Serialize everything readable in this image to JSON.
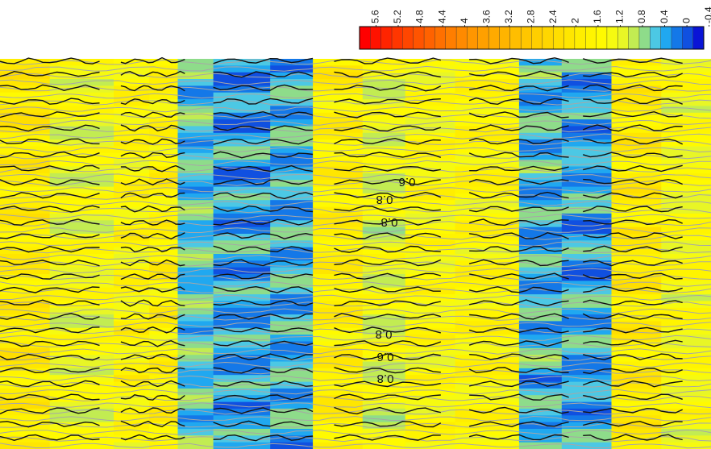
{
  "chart_data": {
    "type": "heatmap",
    "title": "",
    "xlabel": "",
    "ylabel": "",
    "colorbar": {
      "position": "top-right",
      "orientation": "horizontal",
      "tick_labels": [
        "5.6",
        "5.2",
        "4.8",
        "4.4",
        "4",
        "3.6",
        "3.2",
        "2.8",
        "2.4",
        "2",
        "1.6",
        "1.2",
        "0.8",
        "0.4",
        "0",
        "-0.4"
      ],
      "range": [
        -0.4,
        5.8
      ],
      "levels": [
        5.8,
        5.6,
        5.4,
        5.2,
        5.0,
        4.8,
        4.6,
        4.4,
        4.2,
        4.0,
        3.8,
        3.6,
        3.4,
        3.2,
        3.0,
        2.8,
        2.6,
        2.4,
        2.2,
        2.0,
        1.8,
        1.6,
        1.4,
        1.2,
        1.0,
        0.8,
        0.6,
        0.4,
        0.2,
        0.0,
        -0.2,
        -0.4
      ],
      "colors": [
        "#ff0000",
        "#ff1200",
        "#ff2400",
        "#ff3600",
        "#ff4600",
        "#ff5400",
        "#ff6200",
        "#ff7000",
        "#ff7e00",
        "#ff8a00",
        "#ff9600",
        "#ffa000",
        "#ffaa00",
        "#ffb400",
        "#ffbe00",
        "#ffc600",
        "#ffce00",
        "#ffd600",
        "#ffde00",
        "#ffe600",
        "#ffee00",
        "#fff400",
        "#fffa00",
        "#f6fa10",
        "#e8f626",
        "#c2ec52",
        "#8edc8a",
        "#4cc8e4",
        "#20a8f0",
        "#1478e8",
        "#1050e0",
        "#0a14d6"
      ]
    },
    "contour_labels": [
      "0.6",
      "0.8",
      "0.8",
      "0.8",
      "0.6",
      "0.8"
    ],
    "field_columns": [
      {
        "x_start": 0.0,
        "x_end": 0.07,
        "value": 1.9
      },
      {
        "x_start": 0.07,
        "x_end": 0.16,
        "value": 1.3
      },
      {
        "x_start": 0.16,
        "x_end": 0.21,
        "value": 1.6
      },
      {
        "x_start": 0.21,
        "x_end": 0.25,
        "value": 1.7
      },
      {
        "x_start": 0.25,
        "x_end": 0.3,
        "value": 0.5
      },
      {
        "x_start": 0.3,
        "x_end": 0.38,
        "value": 0.3
      },
      {
        "x_start": 0.38,
        "x_end": 0.44,
        "value": 0.4
      },
      {
        "x_start": 0.44,
        "x_end": 0.51,
        "value": 1.8
      },
      {
        "x_start": 0.51,
        "x_end": 0.57,
        "value": 1.2
      },
      {
        "x_start": 0.57,
        "x_end": 0.64,
        "value": 1.5
      },
      {
        "x_start": 0.64,
        "x_end": 0.73,
        "value": 1.6
      },
      {
        "x_start": 0.73,
        "x_end": 0.79,
        "value": 0.4
      },
      {
        "x_start": 0.79,
        "x_end": 0.86,
        "value": 0.3
      },
      {
        "x_start": 0.86,
        "x_end": 0.93,
        "value": 1.9
      },
      {
        "x_start": 0.93,
        "x_end": 1.0,
        "value": 1.4
      }
    ]
  }
}
